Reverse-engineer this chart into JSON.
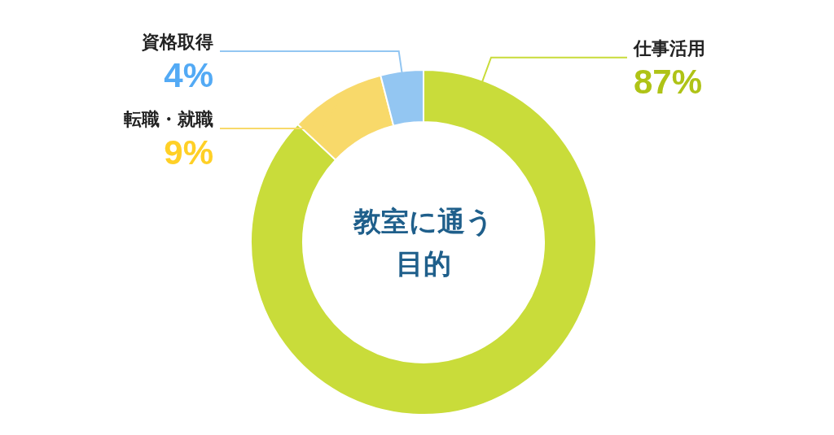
{
  "chart_data": {
    "type": "donut",
    "title": "教室に通う目的",
    "categories": [
      "仕事活用",
      "転職・就職",
      "資格取得"
    ],
    "values": [
      87,
      9,
      4
    ],
    "colors": [
      "#c9dc3a",
      "#f8d96a",
      "#93c6f2"
    ],
    "value_labels": [
      "87%",
      "9%",
      "4%"
    ]
  }
}
